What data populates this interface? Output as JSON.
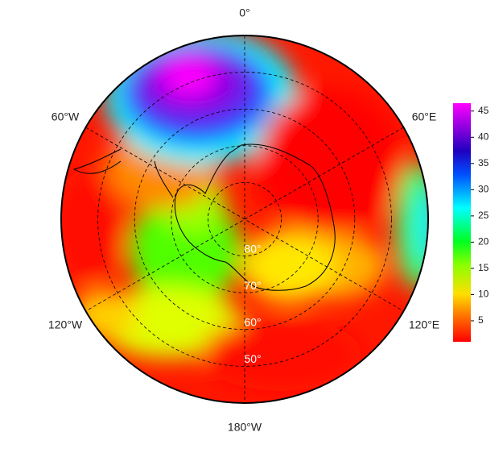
{
  "map": {
    "longitude_labels": [
      "0°",
      "60°E",
      "120°E",
      "180°W",
      "120°W",
      "60°W"
    ],
    "latitude_range": [
      40,
      90
    ],
    "latitude_circles": [
      {
        "value": 80,
        "label": "80°"
      },
      {
        "value": 70,
        "label": "70°"
      },
      {
        "value": 60,
        "label": "60°"
      },
      {
        "value": 50,
        "label": "50°"
      }
    ],
    "colorbar": {
      "lim": [
        1,
        46.5
      ],
      "ticks": [
        5,
        10,
        15,
        20,
        25,
        30,
        35,
        40,
        45
      ]
    }
  }
}
